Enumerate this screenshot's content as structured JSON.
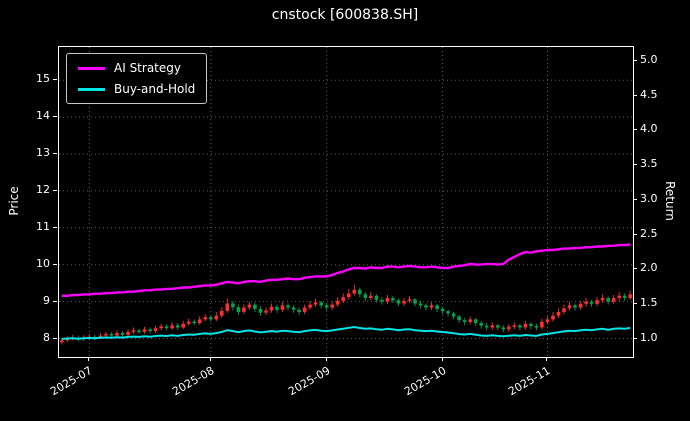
{
  "chart_data": {
    "type": "candlestick+line",
    "title": "cnstock [600838.SH]",
    "theme": "dark_background",
    "grid": "dotted",
    "left_axis": {
      "label": "Price",
      "ticks": [
        8,
        9,
        10,
        11,
        12,
        13,
        14,
        15
      ],
      "min": 7.5,
      "max": 15.9
    },
    "right_axis": {
      "label": "Return",
      "ticks": [
        1.0,
        1.5,
        2.0,
        2.5,
        3.0,
        3.5,
        4.0,
        4.5,
        5.0
      ],
      "min": 0.74,
      "max": 5.2
    },
    "x_axis": {
      "tick_labels": [
        "2025-07",
        "2025-08",
        "2025-09",
        "2025-10",
        "2025-11"
      ],
      "tick_indices": [
        5,
        27,
        48,
        69,
        88
      ]
    },
    "legend": {
      "position": "upper-left",
      "entries": [
        {
          "label": "AI Strategy",
          "color": "#ff00ff"
        },
        {
          "label": "Buy-and-Hold",
          "color": "#00e5e5"
        }
      ]
    },
    "colors": {
      "ai_strategy": "#ff00ff",
      "buy_and_hold": "#00e5e5",
      "up": "#ff2e2e",
      "down": "#00a550",
      "grid": "#5a5a5a",
      "foreground": "#ffffff",
      "background": "#000000"
    },
    "candles": [
      [
        7.9,
        8.01,
        7.84,
        7.95
      ],
      [
        7.95,
        8.06,
        7.9,
        8.0
      ],
      [
        8.0,
        8.1,
        7.95,
        8.02
      ],
      [
        8.02,
        8.08,
        7.92,
        7.98
      ],
      [
        7.98,
        8.09,
        7.93,
        8.03
      ],
      [
        8.03,
        8.12,
        7.98,
        8.05
      ],
      [
        8.05,
        8.1,
        7.96,
        8.02
      ],
      [
        8.02,
        8.15,
        7.98,
        8.08
      ],
      [
        8.08,
        8.18,
        8.03,
        8.12
      ],
      [
        8.12,
        8.17,
        8.02,
        8.08
      ],
      [
        8.08,
        8.22,
        8.04,
        8.15
      ],
      [
        8.15,
        8.2,
        8.05,
        8.1
      ],
      [
        8.1,
        8.25,
        8.06,
        8.18
      ],
      [
        8.18,
        8.3,
        8.13,
        8.22
      ],
      [
        8.22,
        8.27,
        8.12,
        8.18
      ],
      [
        8.18,
        8.32,
        8.13,
        8.25
      ],
      [
        8.25,
        8.3,
        8.14,
        8.2
      ],
      [
        8.2,
        8.35,
        8.15,
        8.28
      ],
      [
        8.28,
        8.4,
        8.23,
        8.33
      ],
      [
        8.33,
        8.38,
        8.22,
        8.28
      ],
      [
        8.28,
        8.44,
        8.23,
        8.36
      ],
      [
        8.36,
        8.42,
        8.24,
        8.3
      ],
      [
        8.3,
        8.48,
        8.26,
        8.4
      ],
      [
        8.4,
        8.54,
        8.35,
        8.46
      ],
      [
        8.46,
        8.52,
        8.36,
        8.42
      ],
      [
        8.42,
        8.6,
        8.37,
        8.52
      ],
      [
        8.52,
        8.66,
        8.47,
        8.58
      ],
      [
        8.58,
        8.63,
        8.45,
        8.52
      ],
      [
        8.52,
        8.72,
        8.47,
        8.62
      ],
      [
        8.62,
        8.85,
        8.56,
        8.75
      ],
      [
        8.75,
        9.08,
        8.7,
        8.95
      ],
      [
        8.95,
        9.02,
        8.76,
        8.85
      ],
      [
        8.85,
        8.92,
        8.64,
        8.72
      ],
      [
        8.72,
        8.93,
        8.66,
        8.84
      ],
      [
        8.84,
        9.0,
        8.78,
        8.92
      ],
      [
        8.92,
        8.98,
        8.72,
        8.8
      ],
      [
        8.8,
        8.88,
        8.62,
        8.7
      ],
      [
        8.7,
        8.84,
        8.63,
        8.76
      ],
      [
        8.76,
        8.95,
        8.7,
        8.86
      ],
      [
        8.86,
        8.92,
        8.7,
        8.78
      ],
      [
        8.78,
        9.0,
        8.72,
        8.9
      ],
      [
        8.9,
        8.95,
        8.76,
        8.84
      ],
      [
        8.84,
        8.9,
        8.7,
        8.78
      ],
      [
        8.78,
        8.84,
        8.64,
        8.72
      ],
      [
        8.72,
        8.92,
        8.66,
        8.84
      ],
      [
        8.84,
        9.02,
        8.78,
        8.92
      ],
      [
        8.92,
        9.08,
        8.86,
        8.98
      ],
      [
        8.98,
        9.02,
        8.82,
        8.9
      ],
      [
        8.9,
        8.96,
        8.76,
        8.84
      ],
      [
        8.84,
        9.0,
        8.78,
        8.92
      ],
      [
        8.92,
        9.12,
        8.86,
        9.02
      ],
      [
        9.02,
        9.22,
        8.96,
        9.12
      ],
      [
        9.12,
        9.34,
        9.05,
        9.22
      ],
      [
        9.22,
        9.46,
        9.16,
        9.32
      ],
      [
        9.32,
        9.38,
        9.12,
        9.2
      ],
      [
        9.2,
        9.26,
        9.02,
        9.1
      ],
      [
        9.1,
        9.26,
        9.04,
        9.16
      ],
      [
        9.16,
        9.2,
        8.97,
        9.05
      ],
      [
        9.05,
        9.12,
        8.92,
        9.0
      ],
      [
        9.0,
        9.18,
        8.94,
        9.1
      ],
      [
        9.1,
        9.15,
        8.96,
        9.04
      ],
      [
        9.04,
        9.08,
        8.88,
        8.95
      ],
      [
        8.95,
        9.1,
        8.88,
        9.02
      ],
      [
        9.02,
        9.15,
        8.96,
        9.06
      ],
      [
        9.06,
        9.1,
        8.88,
        8.95
      ],
      [
        8.95,
        9.02,
        8.82,
        8.9
      ],
      [
        8.9,
        8.95,
        8.76,
        8.84
      ],
      [
        8.84,
        8.98,
        8.77,
        8.9
      ],
      [
        8.9,
        8.94,
        8.72,
        8.8
      ],
      [
        8.8,
        8.86,
        8.66,
        8.74
      ],
      [
        8.74,
        8.78,
        8.6,
        8.68
      ],
      [
        8.68,
        8.72,
        8.52,
        8.6
      ],
      [
        8.6,
        8.64,
        8.42,
        8.5
      ],
      [
        8.5,
        8.56,
        8.36,
        8.45
      ],
      [
        8.45,
        8.6,
        8.38,
        8.52
      ],
      [
        8.52,
        8.56,
        8.34,
        8.42
      ],
      [
        8.42,
        8.48,
        8.27,
        8.35
      ],
      [
        8.35,
        8.42,
        8.22,
        8.3
      ],
      [
        8.3,
        8.44,
        8.23,
        8.36
      ],
      [
        8.36,
        8.4,
        8.22,
        8.3
      ],
      [
        8.3,
        8.36,
        8.17,
        8.25
      ],
      [
        8.25,
        8.4,
        8.18,
        8.32
      ],
      [
        8.32,
        8.44,
        8.25,
        8.36
      ],
      [
        8.36,
        8.4,
        8.22,
        8.3
      ],
      [
        8.3,
        8.48,
        8.24,
        8.4
      ],
      [
        8.4,
        8.44,
        8.26,
        8.34
      ],
      [
        8.34,
        8.4,
        8.22,
        8.3
      ],
      [
        8.3,
        8.54,
        8.25,
        8.45
      ],
      [
        8.45,
        8.6,
        8.38,
        8.52
      ],
      [
        8.52,
        8.72,
        8.46,
        8.62
      ],
      [
        8.62,
        8.82,
        8.55,
        8.72
      ],
      [
        8.72,
        8.92,
        8.66,
        8.82
      ],
      [
        8.82,
        9.0,
        8.76,
        8.9
      ],
      [
        8.9,
        8.95,
        8.76,
        8.84
      ],
      [
        8.84,
        9.02,
        8.78,
        8.94
      ],
      [
        8.94,
        9.1,
        8.86,
        9.0
      ],
      [
        9.0,
        9.05,
        8.86,
        8.94
      ],
      [
        8.94,
        9.12,
        8.88,
        9.04
      ],
      [
        9.04,
        9.2,
        8.97,
        9.1
      ],
      [
        9.1,
        9.14,
        8.92,
        9.0
      ],
      [
        9.0,
        9.18,
        8.94,
        9.1
      ],
      [
        9.1,
        9.26,
        9.02,
        9.16
      ],
      [
        9.16,
        9.22,
        9.02,
        9.1
      ],
      [
        9.1,
        9.3,
        9.04,
        9.2
      ]
    ],
    "series": {
      "ai_strategy": [
        1.62,
        1.62,
        1.63,
        1.63,
        1.64,
        1.64,
        1.65,
        1.65,
        1.66,
        1.66,
        1.67,
        1.67,
        1.68,
        1.68,
        1.69,
        1.7,
        1.7,
        1.71,
        1.71,
        1.72,
        1.72,
        1.73,
        1.74,
        1.74,
        1.75,
        1.76,
        1.77,
        1.77,
        1.78,
        1.8,
        1.82,
        1.81,
        1.8,
        1.82,
        1.83,
        1.83,
        1.82,
        1.84,
        1.85,
        1.85,
        1.86,
        1.87,
        1.86,
        1.86,
        1.88,
        1.89,
        1.9,
        1.9,
        1.9,
        1.92,
        1.95,
        1.97,
        2.0,
        2.02,
        2.02,
        2.01,
        2.03,
        2.02,
        2.02,
        2.04,
        2.04,
        2.03,
        2.04,
        2.05,
        2.04,
        2.03,
        2.03,
        2.04,
        2.03,
        2.02,
        2.02,
        2.04,
        2.05,
        2.06,
        2.08,
        2.07,
        2.07,
        2.08,
        2.08,
        2.07,
        2.08,
        2.14,
        2.18,
        2.22,
        2.25,
        2.24,
        2.26,
        2.27,
        2.28,
        2.28,
        2.29,
        2.3,
        2.3,
        2.31,
        2.31,
        2.32,
        2.32,
        2.33,
        2.33,
        2.34,
        2.34,
        2.35,
        2.35,
        2.36
      ],
      "buy_and_hold": [
        1.0,
        1.006,
        1.009,
        1.004,
        1.01,
        1.013,
        1.009,
        1.016,
        1.021,
        1.016,
        1.025,
        1.019,
        1.029,
        1.034,
        1.029,
        1.038,
        1.031,
        1.042,
        1.048,
        1.042,
        1.052,
        1.044,
        1.057,
        1.064,
        1.059,
        1.072,
        1.079,
        1.072,
        1.084,
        1.101,
        1.126,
        1.113,
        1.097,
        1.112,
        1.122,
        1.107,
        1.094,
        1.102,
        1.114,
        1.104,
        1.119,
        1.112,
        1.104,
        1.097,
        1.112,
        1.122,
        1.13,
        1.119,
        1.112,
        1.122,
        1.135,
        1.147,
        1.16,
        1.172,
        1.157,
        1.145,
        1.152,
        1.138,
        1.132,
        1.145,
        1.137,
        1.126,
        1.135,
        1.14,
        1.126,
        1.119,
        1.112,
        1.119,
        1.107,
        1.099,
        1.092,
        1.082,
        1.069,
        1.063,
        1.072,
        1.059,
        1.05,
        1.044,
        1.052,
        1.044,
        1.038,
        1.047,
        1.052,
        1.044,
        1.057,
        1.049,
        1.044,
        1.063,
        1.072,
        1.084,
        1.097,
        1.109,
        1.119,
        1.112,
        1.124,
        1.132,
        1.124,
        1.137,
        1.145,
        1.132,
        1.145,
        1.152,
        1.145,
        1.157
      ]
    }
  }
}
